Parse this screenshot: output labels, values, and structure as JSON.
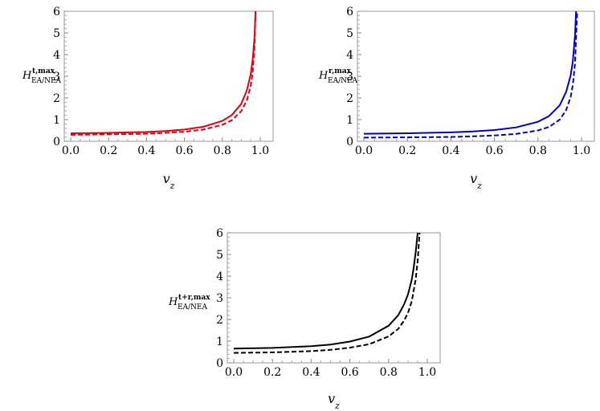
{
  "chart_data": [
    {
      "type": "line",
      "xlabel": "v",
      "xlabel_sub": "z",
      "ylabel": "H",
      "ylabel_sup": "t,max",
      "ylabel_sub": "EA/NEA",
      "xlim": [
        0,
        1.0
      ],
      "ylim": [
        0,
        6
      ],
      "xticks": [
        "0.0",
        "0.2",
        "0.4",
        "0.6",
        "0.8",
        "1.0"
      ],
      "yticks": [
        "0",
        "1",
        "2",
        "3",
        "4",
        "5",
        "6"
      ],
      "grid": false,
      "legend": "none",
      "color": "#e3000f",
      "series": [
        {
          "style": "solid",
          "x": [
            0.0,
            0.2,
            0.4,
            0.5,
            0.6,
            0.7,
            0.8,
            0.85,
            0.9,
            0.93,
            0.95,
            0.96,
            0.97,
            0.975
          ],
          "y": [
            0.37,
            0.39,
            0.43,
            0.47,
            0.54,
            0.67,
            0.94,
            1.21,
            1.73,
            2.37,
            3.11,
            3.78,
            4.81,
            6.0
          ]
        },
        {
          "style": "dashed",
          "x": [
            0.0,
            0.2,
            0.4,
            0.5,
            0.6,
            0.7,
            0.8,
            0.85,
            0.9,
            0.93,
            0.95,
            0.96,
            0.97,
            0.975
          ],
          "y": [
            0.3,
            0.32,
            0.35,
            0.39,
            0.44,
            0.54,
            0.76,
            0.97,
            1.39,
            1.91,
            2.57,
            3.2,
            4.35,
            6.0
          ]
        }
      ]
    },
    {
      "type": "line",
      "xlabel": "v",
      "xlabel_sub": "z",
      "ylabel": "H",
      "ylabel_sup": "r,max",
      "ylabel_sub": "EA/NEA",
      "xlim": [
        0,
        1.0
      ],
      "ylim": [
        0,
        6
      ],
      "xticks": [
        "0.0",
        "0.2",
        "0.4",
        "0.6",
        "0.8",
        "1.0"
      ],
      "yticks": [
        "0",
        "1",
        "2",
        "3",
        "4",
        "5",
        "6"
      ],
      "grid": false,
      "legend": "none",
      "color": "#0000cc",
      "series": [
        {
          "style": "solid",
          "x": [
            0.0,
            0.2,
            0.4,
            0.5,
            0.6,
            0.7,
            0.8,
            0.85,
            0.9,
            0.93,
            0.95,
            0.96,
            0.97,
            0.975
          ],
          "y": [
            0.35,
            0.37,
            0.41,
            0.45,
            0.52,
            0.64,
            0.9,
            1.16,
            1.66,
            2.3,
            3.05,
            3.7,
            4.9,
            6.0
          ]
        },
        {
          "style": "dashed",
          "x": [
            0.0,
            0.2,
            0.4,
            0.5,
            0.6,
            0.7,
            0.8,
            0.85,
            0.9,
            0.93,
            0.95,
            0.96,
            0.97,
            0.98
          ],
          "y": [
            0.17,
            0.18,
            0.2,
            0.23,
            0.27,
            0.34,
            0.5,
            0.66,
            1.0,
            1.45,
            2.05,
            2.6,
            3.6,
            6.0
          ]
        }
      ]
    },
    {
      "type": "line",
      "xlabel": "v",
      "xlabel_sub": "z",
      "ylabel": "H",
      "ylabel_sup": "t+r,max",
      "ylabel_sub": "EA/NEA",
      "xlim": [
        0,
        1.0
      ],
      "ylim": [
        0,
        6
      ],
      "xticks": [
        "0.0",
        "0.2",
        "0.4",
        "0.6",
        "0.8",
        "1.0"
      ],
      "yticks": [
        "0",
        "1",
        "2",
        "3",
        "4",
        "5",
        "6"
      ],
      "grid": false,
      "legend": "none",
      "color": "#000000",
      "series": [
        {
          "style": "solid",
          "x": [
            0.0,
            0.2,
            0.4,
            0.5,
            0.6,
            0.7,
            0.8,
            0.85,
            0.88,
            0.9,
            0.92,
            0.93,
            0.94,
            0.95
          ],
          "y": [
            0.66,
            0.69,
            0.77,
            0.84,
            0.98,
            1.21,
            1.71,
            2.2,
            2.7,
            3.15,
            3.85,
            4.4,
            5.1,
            6.0
          ]
        },
        {
          "style": "dashed",
          "x": [
            0.0,
            0.2,
            0.4,
            0.5,
            0.6,
            0.7,
            0.8,
            0.85,
            0.88,
            0.9,
            0.92,
            0.94,
            0.95,
            0.96
          ],
          "y": [
            0.46,
            0.48,
            0.54,
            0.6,
            0.7,
            0.86,
            1.22,
            1.57,
            1.95,
            2.3,
            2.85,
            3.85,
            4.7,
            6.0
          ]
        }
      ]
    }
  ]
}
